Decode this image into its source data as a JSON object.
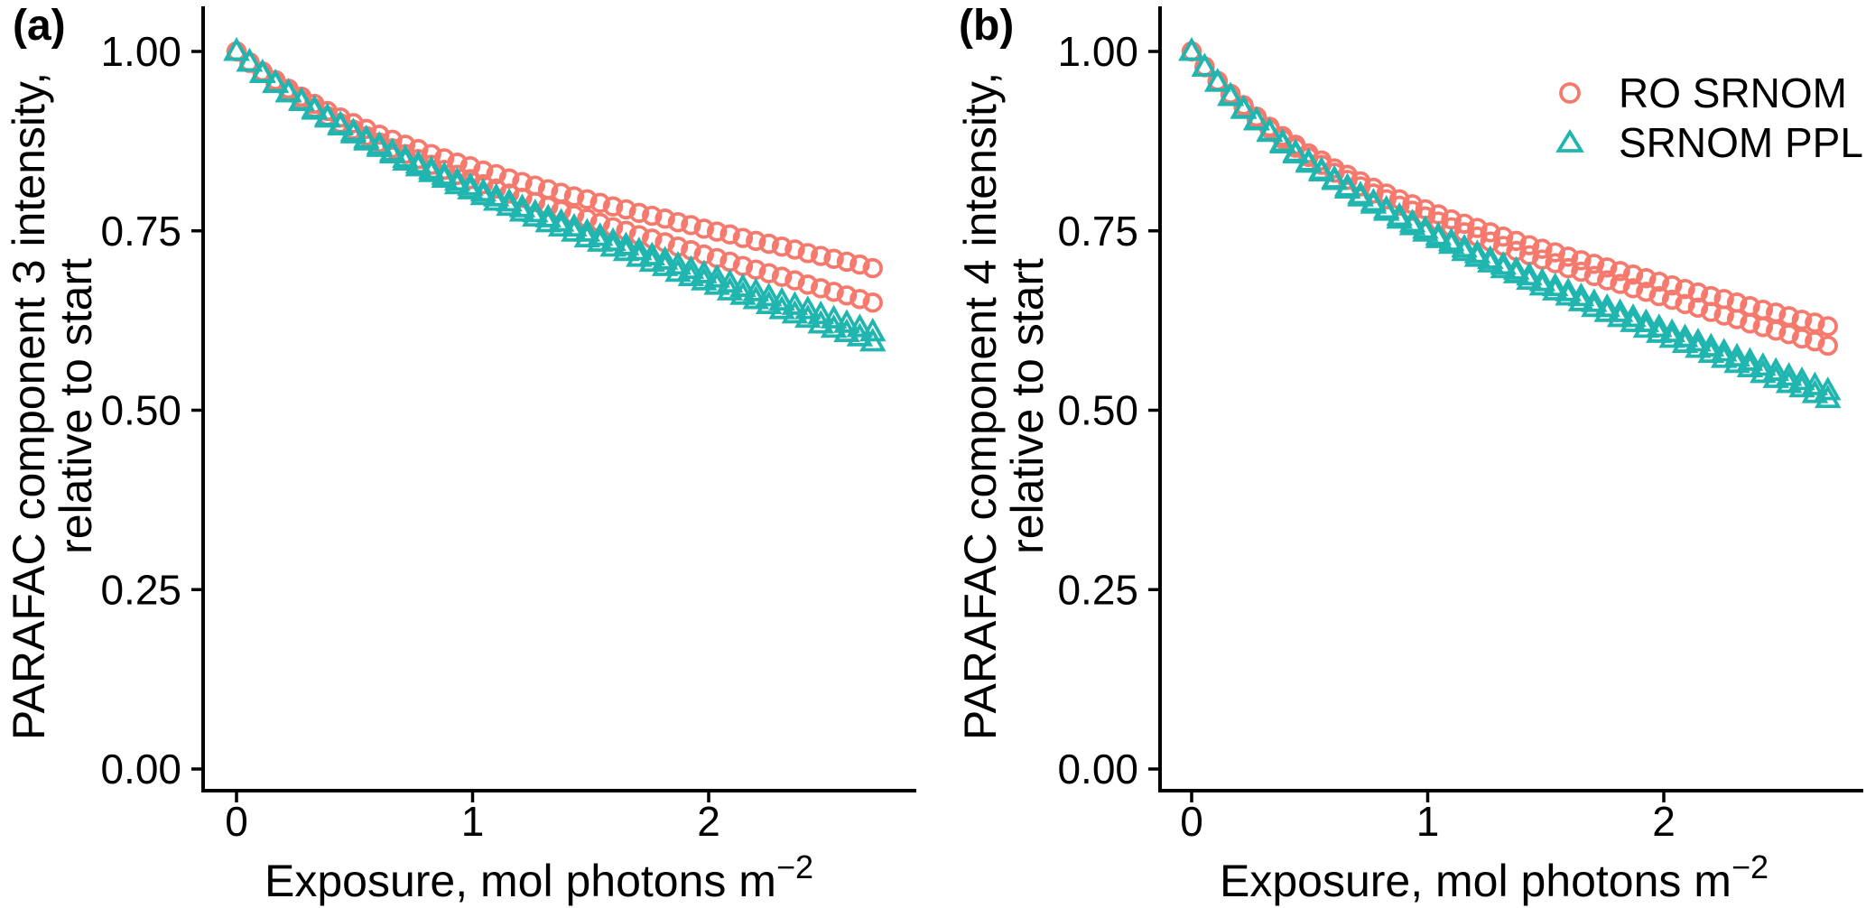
{
  "figure": {
    "background": "#FFFFFF",
    "axis_color": "#000000",
    "panels": [
      {
        "label": "(a)",
        "y_title_line1": "PARAFAC component 3 intensity,",
        "y_title_line2": "relative to start",
        "x_title": "Exposure, mol photons m",
        "x_title_sup": "−2",
        "x_tick_labels": [
          "0",
          "1",
          "2"
        ],
        "y_tick_labels": [
          "1.00",
          "0.75",
          "0.50",
          "0.25",
          "0.00"
        ]
      },
      {
        "label": "(b)",
        "y_title_line1": "PARAFAC component 4 intensity,",
        "y_title_line2": "relative to start",
        "x_title": "Exposure, mol photons m",
        "x_title_sup": "−2",
        "x_tick_labels": [
          "0",
          "1",
          "2"
        ],
        "y_tick_labels": [
          "1.00",
          "0.75",
          "0.50",
          "0.25",
          "0.00"
        ]
      }
    ],
    "legend": {
      "position": "top-right",
      "items": [
        {
          "label": "RO SRNOM",
          "marker": "circle",
          "color": "#F5796D"
        },
        {
          "label": "SRNOM PPL",
          "marker": "triangle",
          "color": "#21B5B0"
        }
      ]
    }
  },
  "chart_data": [
    {
      "type": "scatter",
      "panel": "a",
      "title": "",
      "xlabel": "Exposure, mol photons m−2",
      "ylabel": "PARAFAC component 3 intensity, relative to start",
      "xlim": [
        -0.14,
        2.88
      ],
      "ylim": [
        -0.03,
        1.06
      ],
      "x_ticks": [
        0,
        1,
        2
      ],
      "y_ticks": [
        1.0,
        0.75,
        0.5,
        0.25,
        0.0
      ],
      "grid": false,
      "x": [
        0,
        0.055,
        0.11,
        0.165,
        0.22,
        0.275,
        0.33,
        0.385,
        0.44,
        0.495,
        0.55,
        0.605,
        0.66,
        0.715,
        0.77,
        0.825,
        0.88,
        0.935,
        0.99,
        1.045,
        1.1,
        1.155,
        1.21,
        1.265,
        1.32,
        1.375,
        1.43,
        1.485,
        1.54,
        1.595,
        1.65,
        1.705,
        1.76,
        1.815,
        1.87,
        1.925,
        1.98,
        2.035,
        2.09,
        2.145,
        2.2,
        2.255,
        2.31,
        2.365,
        2.42,
        2.475,
        2.53,
        2.585,
        2.64,
        2.695
      ],
      "series": [
        {
          "name": "RO SRNOM run 1",
          "marker": "circle",
          "color": "#F5796D",
          "y": [
            1,
            0.985,
            0.972,
            0.96,
            0.948,
            0.937,
            0.927,
            0.917,
            0.908,
            0.9,
            0.892,
            0.884,
            0.877,
            0.87,
            0.864,
            0.857,
            0.851,
            0.845,
            0.84,
            0.834,
            0.829,
            0.823,
            0.818,
            0.813,
            0.808,
            0.803,
            0.798,
            0.794,
            0.789,
            0.784,
            0.78,
            0.775,
            0.771,
            0.767,
            0.762,
            0.758,
            0.753,
            0.749,
            0.745,
            0.74,
            0.736,
            0.732,
            0.728,
            0.724,
            0.719,
            0.715,
            0.711,
            0.707,
            0.703,
            0.698
          ]
        },
        {
          "name": "RO SRNOM run 2",
          "marker": "circle",
          "color": "#F5796D",
          "y": [
            1,
            0.984,
            0.97,
            0.957,
            0.944,
            0.932,
            0.921,
            0.91,
            0.9,
            0.891,
            0.882,
            0.873,
            0.865,
            0.857,
            0.85,
            0.842,
            0.835,
            0.828,
            0.822,
            0.815,
            0.809,
            0.802,
            0.796,
            0.79,
            0.784,
            0.778,
            0.772,
            0.767,
            0.761,
            0.755,
            0.75,
            0.744,
            0.739,
            0.734,
            0.728,
            0.723,
            0.717,
            0.712,
            0.707,
            0.701,
            0.696,
            0.691,
            0.686,
            0.681,
            0.675,
            0.67,
            0.665,
            0.66,
            0.655,
            0.65
          ]
        },
        {
          "name": "SRNOM PPL run 1",
          "marker": "triangle",
          "color": "#21B5B0",
          "y": [
            1,
            0.985,
            0.97,
            0.956,
            0.943,
            0.931,
            0.92,
            0.909,
            0.898,
            0.888,
            0.878,
            0.869,
            0.86,
            0.851,
            0.843,
            0.835,
            0.827,
            0.819,
            0.812,
            0.804,
            0.797,
            0.79,
            0.782,
            0.775,
            0.768,
            0.762,
            0.755,
            0.748,
            0.742,
            0.735,
            0.729,
            0.722,
            0.715,
            0.709,
            0.702,
            0.696,
            0.69,
            0.684,
            0.677,
            0.671,
            0.665,
            0.658,
            0.652,
            0.646,
            0.64,
            0.633,
            0.627,
            0.621,
            0.615,
            0.609
          ]
        },
        {
          "name": "SRNOM PPL run 2",
          "marker": "triangle",
          "color": "#21B5B0",
          "y": [
            1,
            0.985,
            0.969,
            0.955,
            0.942,
            0.93,
            0.918,
            0.907,
            0.896,
            0.885,
            0.875,
            0.866,
            0.857,
            0.847,
            0.839,
            0.831,
            0.823,
            0.814,
            0.807,
            0.799,
            0.791,
            0.784,
            0.776,
            0.769,
            0.761,
            0.755,
            0.748,
            0.74,
            0.734,
            0.727,
            0.721,
            0.713,
            0.706,
            0.7,
            0.692,
            0.686,
            0.68,
            0.674,
            0.666,
            0.66,
            0.654,
            0.647,
            0.64,
            0.634,
            0.628,
            0.62,
            0.614,
            0.608,
            0.602,
            0.595
          ]
        }
      ]
    },
    {
      "type": "scatter",
      "panel": "b",
      "title": "",
      "xlabel": "Exposure, mol photons m−2",
      "ylabel": "PARAFAC component 4 intensity, relative to start",
      "xlim": [
        -0.14,
        2.88
      ],
      "ylim": [
        -0.03,
        1.06
      ],
      "x_ticks": [
        0,
        1,
        2
      ],
      "y_ticks": [
        1.0,
        0.75,
        0.5,
        0.25,
        0.0
      ],
      "grid": false,
      "x": [
        0,
        0.055,
        0.11,
        0.165,
        0.22,
        0.275,
        0.33,
        0.385,
        0.44,
        0.495,
        0.55,
        0.605,
        0.66,
        0.715,
        0.77,
        0.825,
        0.88,
        0.935,
        0.99,
        1.045,
        1.1,
        1.155,
        1.21,
        1.265,
        1.32,
        1.375,
        1.43,
        1.485,
        1.54,
        1.595,
        1.65,
        1.705,
        1.76,
        1.815,
        1.87,
        1.925,
        1.98,
        2.035,
        2.09,
        2.145,
        2.2,
        2.255,
        2.31,
        2.365,
        2.42,
        2.475,
        2.53,
        2.585,
        2.64,
        2.695
      ],
      "series": [
        {
          "name": "RO SRNOM run 1",
          "marker": "circle",
          "color": "#F5796D",
          "y": [
            1,
            0.979,
            0.959,
            0.941,
            0.925,
            0.909,
            0.895,
            0.882,
            0.87,
            0.858,
            0.848,
            0.837,
            0.828,
            0.819,
            0.81,
            0.802,
            0.794,
            0.787,
            0.78,
            0.773,
            0.766,
            0.76,
            0.754,
            0.748,
            0.742,
            0.736,
            0.73,
            0.725,
            0.72,
            0.714,
            0.709,
            0.704,
            0.699,
            0.694,
            0.689,
            0.684,
            0.679,
            0.674,
            0.669,
            0.664,
            0.659,
            0.655,
            0.65,
            0.645,
            0.64,
            0.636,
            0.631,
            0.626,
            0.622,
            0.617
          ]
        },
        {
          "name": "RO SRNOM run 2",
          "marker": "circle",
          "color": "#F5796D",
          "y": [
            1,
            0.978,
            0.958,
            0.939,
            0.923,
            0.906,
            0.892,
            0.878,
            0.866,
            0.853,
            0.842,
            0.831,
            0.821,
            0.812,
            0.802,
            0.794,
            0.785,
            0.778,
            0.77,
            0.763,
            0.755,
            0.748,
            0.742,
            0.735,
            0.729,
            0.722,
            0.716,
            0.71,
            0.705,
            0.698,
            0.693,
            0.687,
            0.681,
            0.676,
            0.67,
            0.665,
            0.659,
            0.654,
            0.648,
            0.643,
            0.637,
            0.632,
            0.627,
            0.621,
            0.616,
            0.611,
            0.606,
            0.6,
            0.596,
            0.59
          ]
        },
        {
          "name": "SRNOM PPL run 1",
          "marker": "triangle",
          "color": "#21B5B0",
          "y": [
            1,
            0.978,
            0.957,
            0.938,
            0.92,
            0.904,
            0.888,
            0.873,
            0.859,
            0.846,
            0.834,
            0.822,
            0.811,
            0.8,
            0.79,
            0.78,
            0.77,
            0.761,
            0.752,
            0.743,
            0.735,
            0.726,
            0.718,
            0.71,
            0.702,
            0.695,
            0.687,
            0.679,
            0.672,
            0.665,
            0.658,
            0.65,
            0.643,
            0.636,
            0.629,
            0.622,
            0.615,
            0.608,
            0.601,
            0.595,
            0.588,
            0.581,
            0.574,
            0.568,
            0.561,
            0.554,
            0.547,
            0.541,
            0.534,
            0.527
          ]
        },
        {
          "name": "SRNOM PPL run 2",
          "marker": "triangle",
          "color": "#21B5B0",
          "y": [
            1,
            0.978,
            0.957,
            0.937,
            0.919,
            0.903,
            0.887,
            0.871,
            0.857,
            0.844,
            0.832,
            0.82,
            0.808,
            0.797,
            0.787,
            0.777,
            0.766,
            0.757,
            0.748,
            0.739,
            0.731,
            0.721,
            0.713,
            0.705,
            0.697,
            0.69,
            0.681,
            0.673,
            0.666,
            0.659,
            0.651,
            0.643,
            0.636,
            0.629,
            0.622,
            0.614,
            0.607,
            0.6,
            0.593,
            0.586,
            0.579,
            0.572,
            0.565,
            0.559,
            0.551,
            0.544,
            0.537,
            0.531,
            0.523,
            0.516
          ]
        }
      ]
    }
  ]
}
